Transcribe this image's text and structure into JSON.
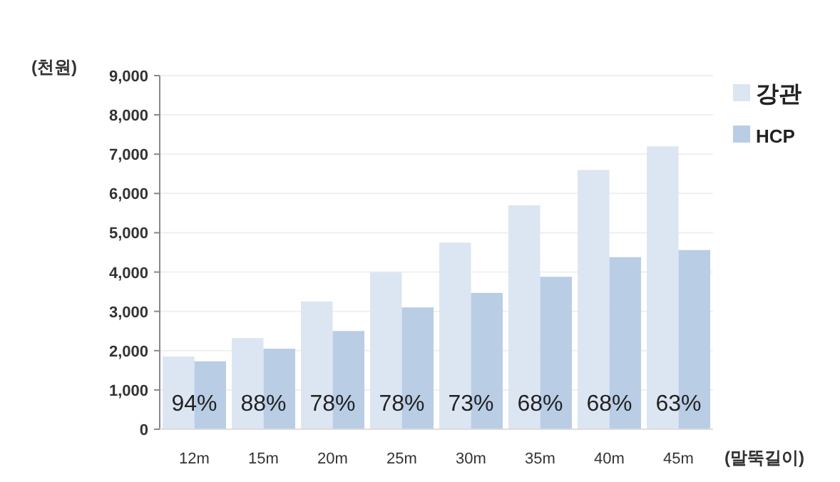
{
  "chart_data": {
    "type": "bar",
    "ylabel": "(천원)",
    "xlabel": "(말뚝길이)",
    "categories": [
      "12m",
      "15m",
      "20m",
      "25m",
      "30m",
      "35m",
      "40m",
      "45m"
    ],
    "series": [
      {
        "name": "강관",
        "color": "#dce6f2",
        "values": [
          1850,
          2320,
          3250,
          4000,
          4750,
          5700,
          6600,
          7200
        ]
      },
      {
        "name": "HCP",
        "color": "#b9cde5",
        "values": [
          1730,
          2050,
          2500,
          3100,
          3470,
          3880,
          4380,
          4560
        ]
      }
    ],
    "ylim": [
      0,
      9000
    ],
    "yticks": [
      0,
      {
        "value": 1000,
        "label": "1,000"
      },
      {
        "value": 2000,
        "label": "2,000"
      },
      {
        "value": 3000,
        "label": "3,000"
      },
      {
        "value": 4000,
        "label": "4,000"
      },
      {
        "value": 5000,
        "label": "5,000"
      },
      {
        "value": 6000,
        "label": "6,000"
      },
      {
        "value": 7000,
        "label": "7,000"
      },
      {
        "value": 8000,
        "label": "8,000"
      },
      {
        "value": 9000,
        "label": "9,000"
      }
    ],
    "grid": "y",
    "legend": "top right",
    "annotations": [
      {
        "text": "94%",
        "x": "12m",
        "y": 400
      },
      {
        "text": "88%",
        "x": "15m",
        "y": 400
      },
      {
        "text": "78%",
        "x": "20m",
        "y": 400
      },
      {
        "text": "78%",
        "x": "25m",
        "y": 400
      },
      {
        "text": "73%",
        "x": "30m",
        "y": 400
      },
      {
        "text": "68%",
        "x": "35m",
        "y": 400
      },
      {
        "text": "68%",
        "x": "40m",
        "y": 400
      },
      {
        "text": "63%",
        "x": "45m",
        "y": 400
      }
    ]
  }
}
